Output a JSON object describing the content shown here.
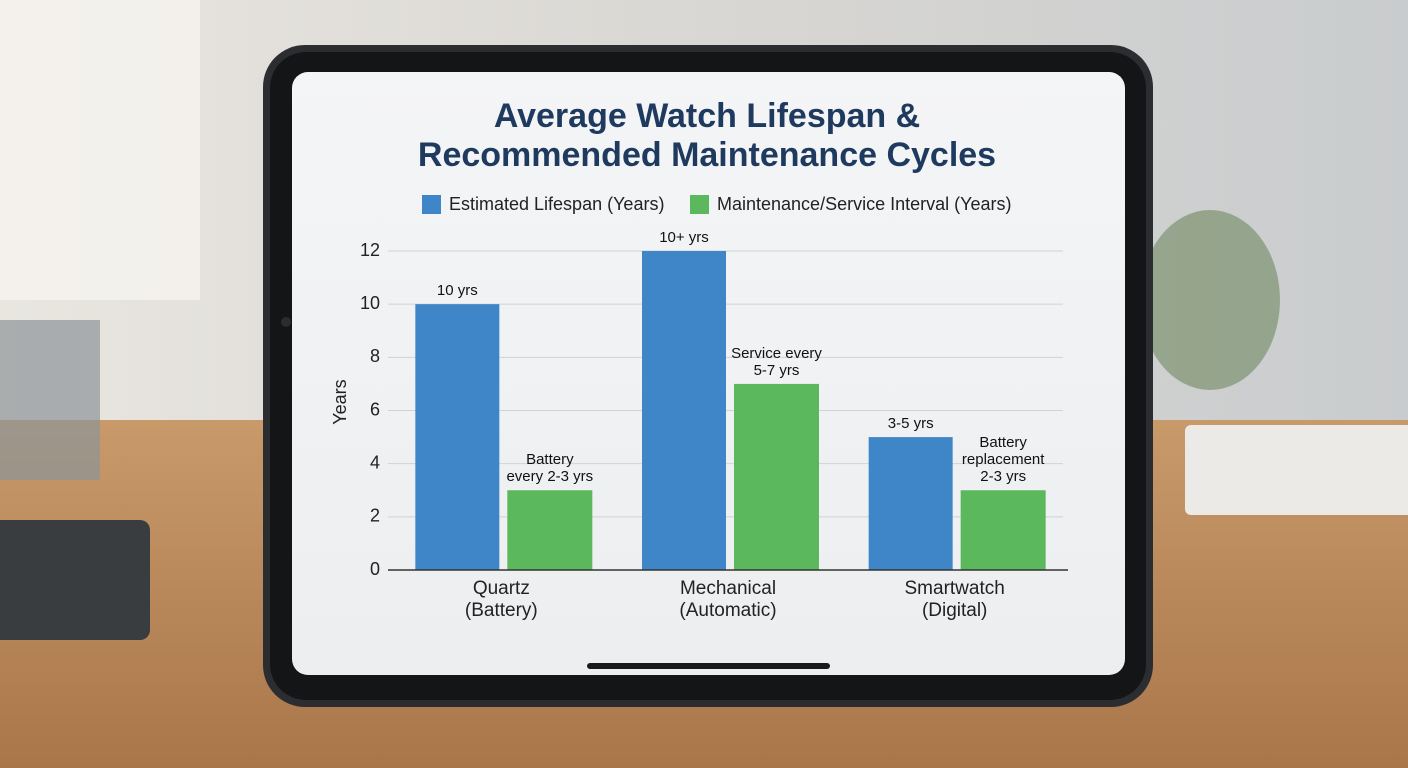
{
  "chart_data": {
    "type": "bar",
    "title": [
      "Average Watch Lifespan &",
      "Recommended Maintenance Cycles"
    ],
    "y_label": "Years",
    "categories": [
      [
        "Quartz",
        "(Battery)"
      ],
      [
        "Mechanical",
        "(Automatic)"
      ],
      [
        "Smartwatch",
        "(Digital)"
      ]
    ],
    "series": [
      {
        "name": "Estimated Lifespan (Years)",
        "color": "#3f86c8",
        "values": [
          10,
          12,
          5
        ],
        "value_labels": [
          [
            "10 yrs"
          ],
          [
            "10+ yrs"
          ],
          [
            "3-5 yrs"
          ]
        ]
      },
      {
        "name": "Maintenance/Service Interval (Years)",
        "color": "#5cb85c",
        "values": [
          3,
          7,
          3
        ],
        "value_labels": [
          [
            "Battery",
            "every 2-3 yrs"
          ],
          [
            "Service every",
            "5-7 yrs"
          ],
          [
            "Battery",
            "replacement",
            "2-3 yrs"
          ]
        ]
      }
    ],
    "ylim": [
      0,
      12
    ],
    "yticks": [
      0,
      2,
      4,
      6,
      8,
      10,
      12
    ],
    "grid": true,
    "legend": "top"
  }
}
